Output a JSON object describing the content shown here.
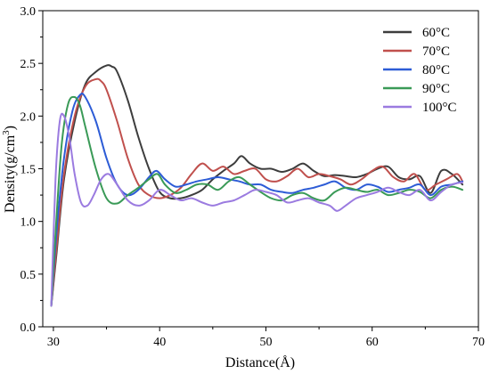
{
  "chart_data": {
    "type": "line",
    "title": "",
    "xlabel": "Distance(Å)",
    "ylabel_main": "Density(g/cm",
    "ylabel_sup": "3",
    "ylabel_close": ")",
    "xlim": [
      29,
      70
    ],
    "ylim": [
      0.0,
      3.0
    ],
    "xticks": [
      "30",
      "40",
      "50",
      "60",
      "70"
    ],
    "yticks": [
      "0.0",
      "0.5",
      "1.0",
      "1.5",
      "2.0",
      "2.5",
      "3.0"
    ],
    "grid": false,
    "legend_position": "top-right",
    "series": [
      {
        "name": "60°C",
        "color": "#3d3d3d",
        "x": [
          29.8,
          30.3,
          31,
          32,
          33,
          34,
          35,
          35.5,
          36,
          37,
          38,
          39,
          40,
          41,
          42,
          43,
          44,
          45,
          46,
          47,
          47.7,
          48.5,
          49.5,
          50.5,
          51.5,
          52.5,
          53.5,
          54.5,
          55.5,
          56.5,
          57.5,
          58.5,
          59.5,
          60.5,
          61.5,
          62.5,
          63.5,
          64.5,
          65.5,
          66.5,
          67.5,
          68.5
        ],
        "y": [
          0.2,
          0.7,
          1.4,
          1.95,
          2.3,
          2.42,
          2.48,
          2.47,
          2.42,
          2.15,
          1.8,
          1.5,
          1.28,
          1.22,
          1.22,
          1.25,
          1.3,
          1.4,
          1.48,
          1.55,
          1.62,
          1.55,
          1.5,
          1.5,
          1.47,
          1.5,
          1.55,
          1.48,
          1.43,
          1.44,
          1.43,
          1.42,
          1.45,
          1.5,
          1.52,
          1.42,
          1.4,
          1.43,
          1.27,
          1.48,
          1.45,
          1.35
        ]
      },
      {
        "name": "70°C",
        "color": "#c0504d",
        "x": [
          29.8,
          30.3,
          31,
          32,
          33,
          34,
          34.5,
          35,
          36,
          37,
          38,
          39,
          40,
          41,
          42,
          43,
          44,
          45,
          46,
          47,
          48,
          49,
          50,
          51,
          52,
          53,
          54,
          55,
          56,
          57,
          58,
          59,
          60,
          61,
          62,
          63,
          64,
          65,
          66,
          67,
          68,
          68.5
        ],
        "y": [
          0.2,
          0.75,
          1.45,
          2.0,
          2.28,
          2.35,
          2.33,
          2.25,
          1.95,
          1.6,
          1.35,
          1.25,
          1.22,
          1.25,
          1.32,
          1.45,
          1.55,
          1.48,
          1.52,
          1.45,
          1.48,
          1.5,
          1.4,
          1.38,
          1.43,
          1.5,
          1.42,
          1.45,
          1.43,
          1.4,
          1.35,
          1.4,
          1.48,
          1.52,
          1.42,
          1.38,
          1.45,
          1.3,
          1.35,
          1.4,
          1.45,
          1.38
        ]
      },
      {
        "name": "80°C",
        "color": "#2d5cd6",
        "x": [
          29.8,
          30.3,
          31,
          31.8,
          32.5,
          33,
          34,
          35,
          36,
          37,
          38,
          39,
          39.7,
          40.5,
          41.5,
          42.5,
          43.5,
          44.5,
          45.5,
          46.5,
          47.5,
          48.5,
          49.5,
          50.5,
          51.5,
          52.5,
          53.5,
          54.5,
          55.5,
          56.5,
          57.5,
          58.5,
          59.5,
          60.5,
          61.5,
          62.5,
          63.5,
          64.5,
          65.5,
          66.5,
          67.5,
          68.5
        ],
        "y": [
          0.2,
          0.9,
          1.6,
          2.05,
          2.2,
          2.18,
          1.95,
          1.6,
          1.35,
          1.25,
          1.3,
          1.42,
          1.48,
          1.4,
          1.33,
          1.35,
          1.38,
          1.4,
          1.42,
          1.4,
          1.38,
          1.35,
          1.35,
          1.3,
          1.28,
          1.27,
          1.3,
          1.32,
          1.35,
          1.38,
          1.32,
          1.3,
          1.35,
          1.33,
          1.28,
          1.3,
          1.32,
          1.35,
          1.25,
          1.33,
          1.35,
          1.38
        ]
      },
      {
        "name": "90°C",
        "color": "#3a9a57",
        "x": [
          29.8,
          30.3,
          30.8,
          31.4,
          32,
          32.5,
          33,
          34,
          35,
          36,
          37,
          38,
          39,
          39.8,
          40.5,
          41.5,
          42.5,
          43.5,
          44.5,
          45.5,
          46.5,
          47.5,
          48.5,
          49.5,
          50.5,
          51.5,
          52.5,
          53.5,
          54.5,
          55.5,
          56.5,
          57.5,
          58.5,
          59.5,
          60.5,
          61.5,
          62.5,
          63.5,
          64.5,
          65.5,
          66.5,
          67.5,
          68.5
        ],
        "y": [
          0.2,
          1.05,
          1.75,
          2.12,
          2.18,
          2.1,
          1.9,
          1.5,
          1.22,
          1.17,
          1.25,
          1.32,
          1.4,
          1.45,
          1.35,
          1.27,
          1.3,
          1.35,
          1.35,
          1.3,
          1.38,
          1.42,
          1.35,
          1.28,
          1.22,
          1.2,
          1.25,
          1.27,
          1.22,
          1.2,
          1.28,
          1.32,
          1.3,
          1.28,
          1.3,
          1.25,
          1.27,
          1.3,
          1.28,
          1.22,
          1.3,
          1.33,
          1.3
        ]
      },
      {
        "name": "100°C",
        "color": "#9b7be0",
        "x": [
          29.8,
          30.2,
          30.6,
          31,
          31.5,
          32,
          32.6,
          33.2,
          33.8,
          34.5,
          35.2,
          36,
          37,
          38,
          39,
          40,
          41,
          42,
          43,
          44,
          45,
          46,
          47,
          48,
          49,
          50,
          51,
          52,
          53,
          54,
          55,
          56,
          56.7,
          57.5,
          58.5,
          59.5,
          60.5,
          61.5,
          62.5,
          63.5,
          64.5,
          65.5,
          66.5,
          67.5,
          68.5
        ],
        "y": [
          0.2,
          1.4,
          1.95,
          2.0,
          1.8,
          1.45,
          1.18,
          1.15,
          1.25,
          1.4,
          1.45,
          1.35,
          1.2,
          1.15,
          1.2,
          1.3,
          1.25,
          1.2,
          1.22,
          1.18,
          1.15,
          1.18,
          1.2,
          1.25,
          1.3,
          1.28,
          1.25,
          1.18,
          1.2,
          1.22,
          1.18,
          1.15,
          1.1,
          1.15,
          1.22,
          1.25,
          1.28,
          1.32,
          1.28,
          1.25,
          1.3,
          1.2,
          1.28,
          1.35,
          1.37
        ]
      }
    ]
  }
}
